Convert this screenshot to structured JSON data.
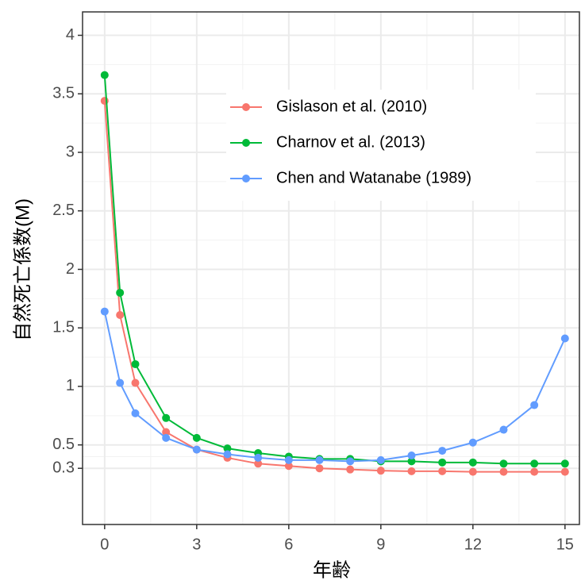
{
  "chart_data": {
    "type": "line",
    "x_label": "年齢",
    "y_label": "自然死亡係数(M)",
    "x": [
      0,
      0.5,
      1,
      2,
      3,
      4,
      5,
      6,
      7,
      8,
      9,
      10,
      11,
      12,
      13,
      14,
      15
    ],
    "series": [
      {
        "name": "Gislason et al. (2010)",
        "color": "#F8766D",
        "values": [
          3.44,
          1.61,
          1.03,
          0.61,
          0.46,
          0.39,
          0.34,
          0.32,
          0.3,
          0.29,
          0.28,
          0.275,
          0.275,
          0.27,
          0.27,
          0.27,
          0.27
        ]
      },
      {
        "name": "Charnov et al. (2013)",
        "color": "#00BA38",
        "values": [
          3.66,
          1.8,
          1.19,
          0.73,
          0.56,
          0.47,
          0.43,
          0.4,
          0.38,
          0.38,
          0.36,
          0.36,
          0.35,
          0.35,
          0.34,
          0.34,
          0.34
        ]
      },
      {
        "name": "Chen and Watanabe (1989)",
        "color": "#619CFF",
        "values": [
          1.64,
          1.03,
          0.77,
          0.56,
          0.46,
          0.42,
          0.39,
          0.37,
          0.37,
          0.36,
          0.37,
          0.41,
          0.45,
          0.52,
          0.63,
          0.84,
          1.41
        ]
      }
    ],
    "xlim": [
      -0.72,
      15.47
    ],
    "ylim": [
      -0.18,
      4.2
    ],
    "xticks": [
      0,
      3,
      6,
      9,
      12,
      15
    ],
    "yticks": [
      0.3,
      0.5,
      1,
      1.5,
      2,
      2.5,
      3,
      3.5,
      4
    ],
    "grid": true,
    "legend": "top-right"
  }
}
